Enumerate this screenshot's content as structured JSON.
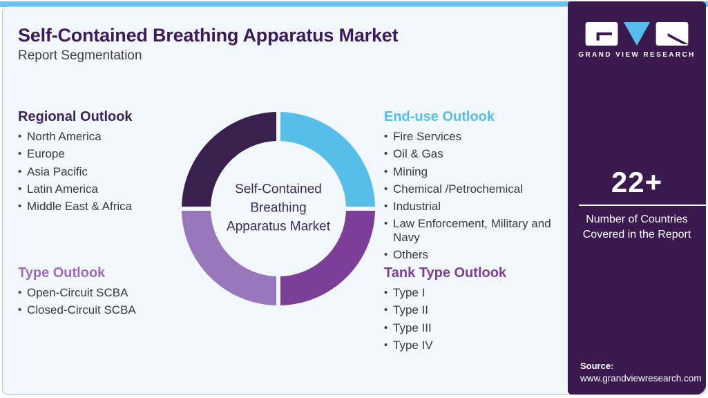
{
  "header": {
    "title": "Self-Contained Breathing Apparatus Market",
    "subtitle": "Report Segmentation"
  },
  "colors": {
    "top_bar": "#66c5ee",
    "card_background": "#f2f7fb",
    "title_purple": "#3c1b58",
    "sidebar_background": "#3a194e",
    "dark_purple": "#38224d",
    "light_blue": "#57bee9",
    "medium_purple": "#7c3e98",
    "light_purple": "#9877bb"
  },
  "chart_data": {
    "type": "pie",
    "variant": "donut",
    "title": "Self-Contained Breathing Apparatus Market",
    "center_label": "Self-Contained Breathing Apparatus Market",
    "legend_position": "none",
    "segments": [
      {
        "label": "End-use Outlook",
        "value": 25,
        "color": "#57bee9",
        "position": "top-right"
      },
      {
        "label": "Tank Type Outlook",
        "value": 25,
        "color": "#7c3e98",
        "position": "bottom-right"
      },
      {
        "label": "Type Outlook",
        "value": 25,
        "color": "#9877bb",
        "position": "bottom-left"
      },
      {
        "label": "Regional Outlook",
        "value": 25,
        "color": "#38224d",
        "position": "top-left"
      }
    ]
  },
  "sections": {
    "regional": {
      "heading": "Regional Outlook",
      "color": "#3c2458",
      "items": [
        "North America",
        "Europe",
        "Asia Pacific",
        "Latin America",
        "Middle East & Africa"
      ]
    },
    "end_use": {
      "heading": "End-use Outlook",
      "color": "#57bee9",
      "items": [
        "Fire Services",
        "Oil & Gas",
        "Mining",
        "Chemical /Petrochemical",
        "Industrial",
        "Law Enforcement, Military and Navy",
        "Others"
      ]
    },
    "type": {
      "heading": "Type Outlook",
      "color": "#9d6cb7",
      "items": [
        "Open-Circuit SCBA",
        "Closed-Circuit SCBA"
      ]
    },
    "tank_type": {
      "heading": "Tank Type Outlook",
      "color": "#7b3f9a",
      "items": [
        "Type I",
        "Type II",
        "Type III",
        "Type IV"
      ]
    }
  },
  "sidebar": {
    "brand": "GRAND VIEW RESEARCH",
    "stat_value": "22+",
    "stat_label": "Number of Countries Covered in the Report",
    "source_label": "Source:",
    "source_url": "www.grandviewresearch.com"
  }
}
